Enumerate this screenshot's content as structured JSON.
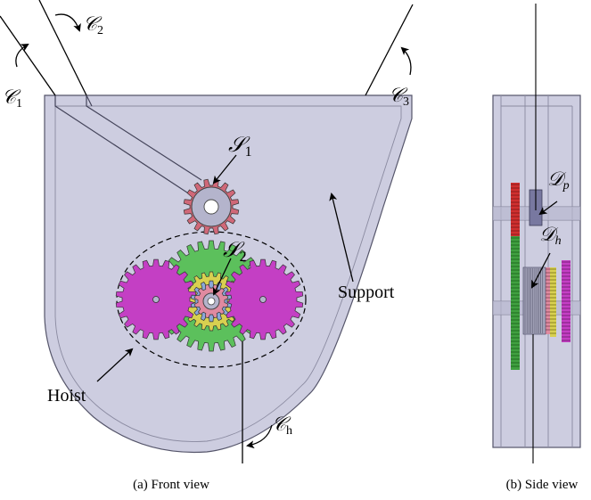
{
  "front_view": {
    "caption": "(a) Front view",
    "labels": {
      "cable_1": {
        "sym": "𝒞",
        "sub": "1"
      },
      "cable_2": {
        "sym": "𝒞",
        "sub": "2"
      },
      "cable_3": {
        "sym": "𝒞",
        "sub": "3"
      },
      "cable_h": {
        "sym": "𝒞",
        "sub": "h"
      },
      "shaft_1": {
        "sym": "𝒮",
        "sub": "1"
      },
      "shaft_2": {
        "sym": "𝒮",
        "sub": "2"
      },
      "support": "Support",
      "hoist": "Hoist"
    }
  },
  "side_view": {
    "caption": "(b) Side view",
    "labels": {
      "drum_p": {
        "sym": "𝒟",
        "sub": "p"
      },
      "drum_h": {
        "sym": "𝒟",
        "sub": "h"
      }
    }
  },
  "colors": {
    "support_fill": "#cdcde0",
    "support_stroke": "#55556a",
    "gear_magenta": "#c43fc4",
    "gear_green": "#5cc05c",
    "gear_yellow": "#d8d050",
    "gear_pink": "#e08aa0",
    "gear_blue": "#8aa8d8",
    "pulley_gear": "#d06878",
    "hub": "#b4b4cc",
    "red_strip": "#d03030",
    "green_strip": "#40a040"
  }
}
